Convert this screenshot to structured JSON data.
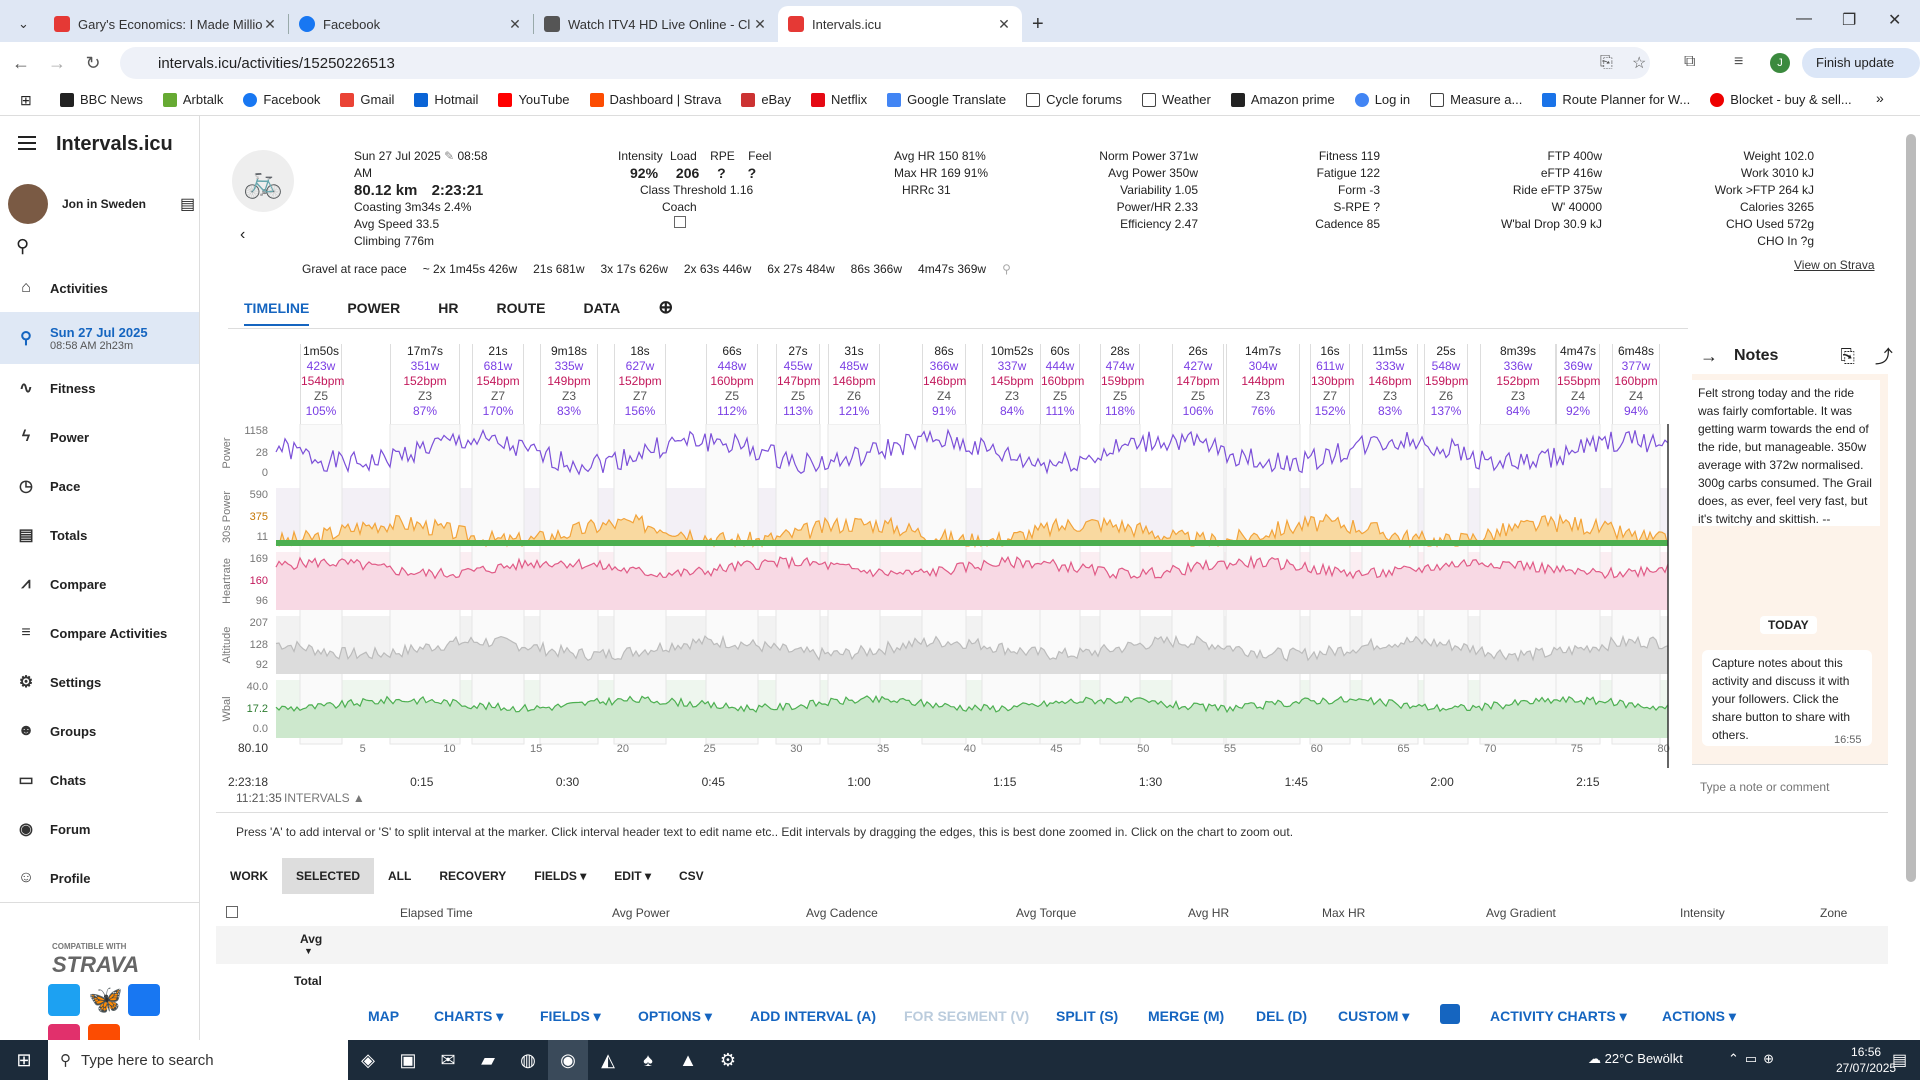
{
  "browser": {
    "tabs": [
      {
        "title": "Gary's Economics: I Made Millio",
        "color": "#e53935"
      },
      {
        "title": "Facebook",
        "color": "#1877f2"
      },
      {
        "title": "Watch ITV4 HD Live Online - Cl",
        "color": "#555"
      },
      {
        "title": "Intervals.icu",
        "color": "#e53935"
      }
    ],
    "url": "intervals.icu/activities/15250226513",
    "finish_update": "Finish update",
    "avatar_letter": "J"
  },
  "bookmarks": [
    "BBC News",
    "Arbtalk",
    "Facebook",
    "Gmail",
    "Hotmail",
    "YouTube",
    "Dashboard | Strava",
    "eBay",
    "Netflix",
    "Google Translate",
    "Cycle forums",
    "Weather",
    "Amazon prime",
    "Log in",
    "Measure a...",
    "Route Planner for W...",
    "Blocket - buy & sell..."
  ],
  "sidebar": {
    "logo": "Intervals.icu",
    "user": "Jon in Sweden",
    "items": [
      {
        "label": "Activities",
        "icon": "⌂"
      },
      {
        "label": "Sun 27 Jul 2025",
        "sub": "08:58 AM    2h23m",
        "icon": "⚲"
      },
      {
        "label": "Fitness",
        "icon": "∿"
      },
      {
        "label": "Power",
        "icon": "ϟ"
      },
      {
        "label": "Pace",
        "icon": "◷"
      },
      {
        "label": "Totals",
        "icon": "▤"
      },
      {
        "label": "Compare",
        "icon": "⩘"
      },
      {
        "label": "Compare Activities",
        "icon": "≡"
      },
      {
        "label": "Settings",
        "icon": "⚙"
      },
      {
        "label": "Groups",
        "icon": "☻"
      },
      {
        "label": "Chats",
        "icon": "▭"
      },
      {
        "label": "Forum",
        "icon": "◉"
      },
      {
        "label": "Profile",
        "icon": "☺"
      }
    ],
    "strava_compat": "COMPATIBLE WITH",
    "strava": "STRAVA"
  },
  "activity": {
    "date": "Sun 27 Jul 2025",
    "time": "08:58 AM",
    "distance": "80.12 km",
    "duration": "2:23:21",
    "coasting": "Coasting 3m34s 2.4%",
    "avg_speed": "Avg Speed 33.5",
    "climbing": "Climbing 776m",
    "intensity_label": "Intensity",
    "intensity": "92%",
    "load_label": "Load",
    "load": "206",
    "rpe_label": "RPE",
    "rpe": "?",
    "feel_label": "Feel",
    "feel": "?",
    "class": "Class Threshold 1.16",
    "coach": "Coach",
    "avg_hr": "Avg HR 150 81%",
    "max_hr": "Max HR 169 91%",
    "hrrc": "HRRc 31",
    "norm_power": "Norm Power 371w",
    "avg_power": "Avg Power 350w",
    "variability": "Variability 1.05",
    "power_hr": "Power/HR 2.33",
    "efficiency": "Efficiency 2.47",
    "fitness": "Fitness 119",
    "fatigue": "Fatigue 122",
    "form": "Form -3",
    "spre": "S-RPE ?",
    "cadence": "Cadence 85",
    "ftp": "FTP 400w",
    "eftp": "eFTP 416w",
    "ride_eftp": "Ride eFTP 375w",
    "wprime": "W' 40000",
    "wbal": "W'bal Drop 30.9 kJ",
    "weight": "Weight 102.0",
    "work": "Work 3010 kJ",
    "work_ftp": "Work >FTP 264 kJ",
    "calories": "Calories 3265",
    "cho_used": "CHO Used 572g",
    "cho_in": "CHO In ?g",
    "race_pace": "Gravel at race pace",
    "race_intervals": [
      "~ 2x 1m45s 426w",
      "21s 681w",
      "3x 17s 626w",
      "2x 63s 446w",
      "6x 27s 484w",
      "86s 366w",
      "4m47s 369w"
    ],
    "view_strava": "View on Strava"
  },
  "tabs": [
    "TIMELINE",
    "POWER",
    "HR",
    "ROUTE",
    "DATA"
  ],
  "intervals": [
    {
      "t": "1m50s",
      "p": "423w",
      "h": "154bpm",
      "z": "Z5",
      "pc": "105%"
    },
    {
      "t": "17m7s",
      "p": "351w",
      "h": "152bpm",
      "z": "Z3",
      "pc": "87%"
    },
    {
      "t": "21s",
      "p": "681w",
      "h": "154bpm",
      "z": "Z7",
      "pc": "170%"
    },
    {
      "t": "9m18s",
      "p": "335w",
      "h": "149bpm",
      "z": "Z3",
      "pc": "83%"
    },
    {
      "t": "18s",
      "p": "627w",
      "h": "152bpm",
      "z": "Z7",
      "pc": "156%"
    },
    {
      "t": "66s",
      "p": "448w",
      "h": "160bpm",
      "z": "Z5",
      "pc": "112%"
    },
    {
      "t": "27s",
      "p": "455w",
      "h": "147bpm",
      "z": "Z5",
      "pc": "113%"
    },
    {
      "t": "31s",
      "p": "485w",
      "h": "146bpm",
      "z": "Z6",
      "pc": "121%"
    },
    {
      "t": "86s",
      "p": "366w",
      "h": "146bpm",
      "z": "Z4",
      "pc": "91%"
    },
    {
      "t": "10m52s",
      "p": "337w",
      "h": "145bpm",
      "z": "Z3",
      "pc": "84%"
    },
    {
      "t": "60s",
      "p": "444w",
      "h": "160bpm",
      "z": "Z5",
      "pc": "111%"
    },
    {
      "t": "28s",
      "p": "474w",
      "h": "159bpm",
      "z": "Z5",
      "pc": "118%"
    },
    {
      "t": "26s",
      "p": "427w",
      "h": "147bpm",
      "z": "Z5",
      "pc": "106%"
    },
    {
      "t": "14m7s",
      "p": "304w",
      "h": "144bpm",
      "z": "Z3",
      "pc": "76%"
    },
    {
      "t": "16s",
      "p": "611w",
      "h": "130bpm",
      "z": "Z7",
      "pc": "152%"
    },
    {
      "t": "11m5s",
      "p": "333w",
      "h": "146bpm",
      "z": "Z3",
      "pc": "83%"
    },
    {
      "t": "25s",
      "p": "548w",
      "h": "159bpm",
      "z": "Z6",
      "pc": "137%"
    },
    {
      "t": "8m39s",
      "p": "336w",
      "h": "152bpm",
      "z": "Z3",
      "pc": "84%"
    },
    {
      "t": "4m47s",
      "p": "369w",
      "h": "155bpm",
      "z": "Z4",
      "pc": "92%"
    },
    {
      "t": "6m48s",
      "p": "377w",
      "h": "160bpm",
      "z": "Z4",
      "pc": "94%"
    }
  ],
  "chart": {
    "power_label": "Power",
    "power_ticks": [
      "1158",
      "28",
      "0"
    ],
    "p30_label": "30s Power",
    "p30_ticks": [
      "590",
      "375",
      "11"
    ],
    "hr_label": "Heartrate",
    "hr_ticks": [
      "169",
      "160",
      "96"
    ],
    "alt_label": "Altitude",
    "alt_ticks": [
      "207",
      "128",
      "92"
    ],
    "wbal_label": "Wbal",
    "wbal_ticks": [
      "40.0",
      "17.2",
      "0.0"
    ],
    "dist_start": "80.10",
    "dist_ticks": [
      "5",
      "10",
      "15",
      "20",
      "25",
      "30",
      "35",
      "40",
      "45",
      "50",
      "55",
      "60",
      "65",
      "70",
      "75",
      "80"
    ],
    "time_start": "2:23:18",
    "time_ticks": [
      "0:15",
      "0:30",
      "0:45",
      "1:00",
      "1:15",
      "1:30",
      "1:45",
      "2:00",
      "2:15"
    ],
    "clock": "11:21:35",
    "intervals_toggle": "INTERVALS"
  },
  "notes": {
    "title": "Notes",
    "text": "Felt strong today and the ride was fairly comfortable. It was getting warm towards the end of the ride, but manageable. 350w average with 372w normalised. 300g carbs consumed. The Grail does, as ever, feel very fast, but it's twitchy and skittish. --",
    "today": "TODAY",
    "tip": "Capture notes about this activity and discuss it with your followers. Click the share button to share with others.",
    "tip_time": "16:55",
    "placeholder": "Type a note or comment"
  },
  "help": "Press 'A' to add interval or 'S' to split interval at the marker. Click interval header text to edit name etc.. Edit intervals by dragging the edges, this is best done zoomed in. Click on the chart to zoom out.",
  "filters": [
    "WORK",
    "SELECTED",
    "ALL",
    "RECOVERY",
    "FIELDS ▾",
    "EDIT ▾",
    "CSV"
  ],
  "table_headers": [
    "Elapsed Time",
    "Avg Power",
    "Avg Cadence",
    "Avg Torque",
    "Avg HR",
    "Max HR",
    "Avg Gradient",
    "Intensity",
    "Zone"
  ],
  "avg": "Avg",
  "total": "Total",
  "bottom": [
    "MAP",
    "CHARTS ▾",
    "FIELDS ▾",
    "OPTIONS ▾",
    "ADD INTERVAL (A)",
    "FOR SEGMENT (V)",
    "SPLIT (S)",
    "MERGE (M)",
    "DEL (D)",
    "CUSTOM ▾",
    "ACTIVITY CHARTS ▾",
    "ACTIONS ▾"
  ],
  "taskbar": {
    "search": "Type here to search",
    "weather": "22°C Bewölkt",
    "time": "16:56",
    "date": "27/07/2025"
  }
}
